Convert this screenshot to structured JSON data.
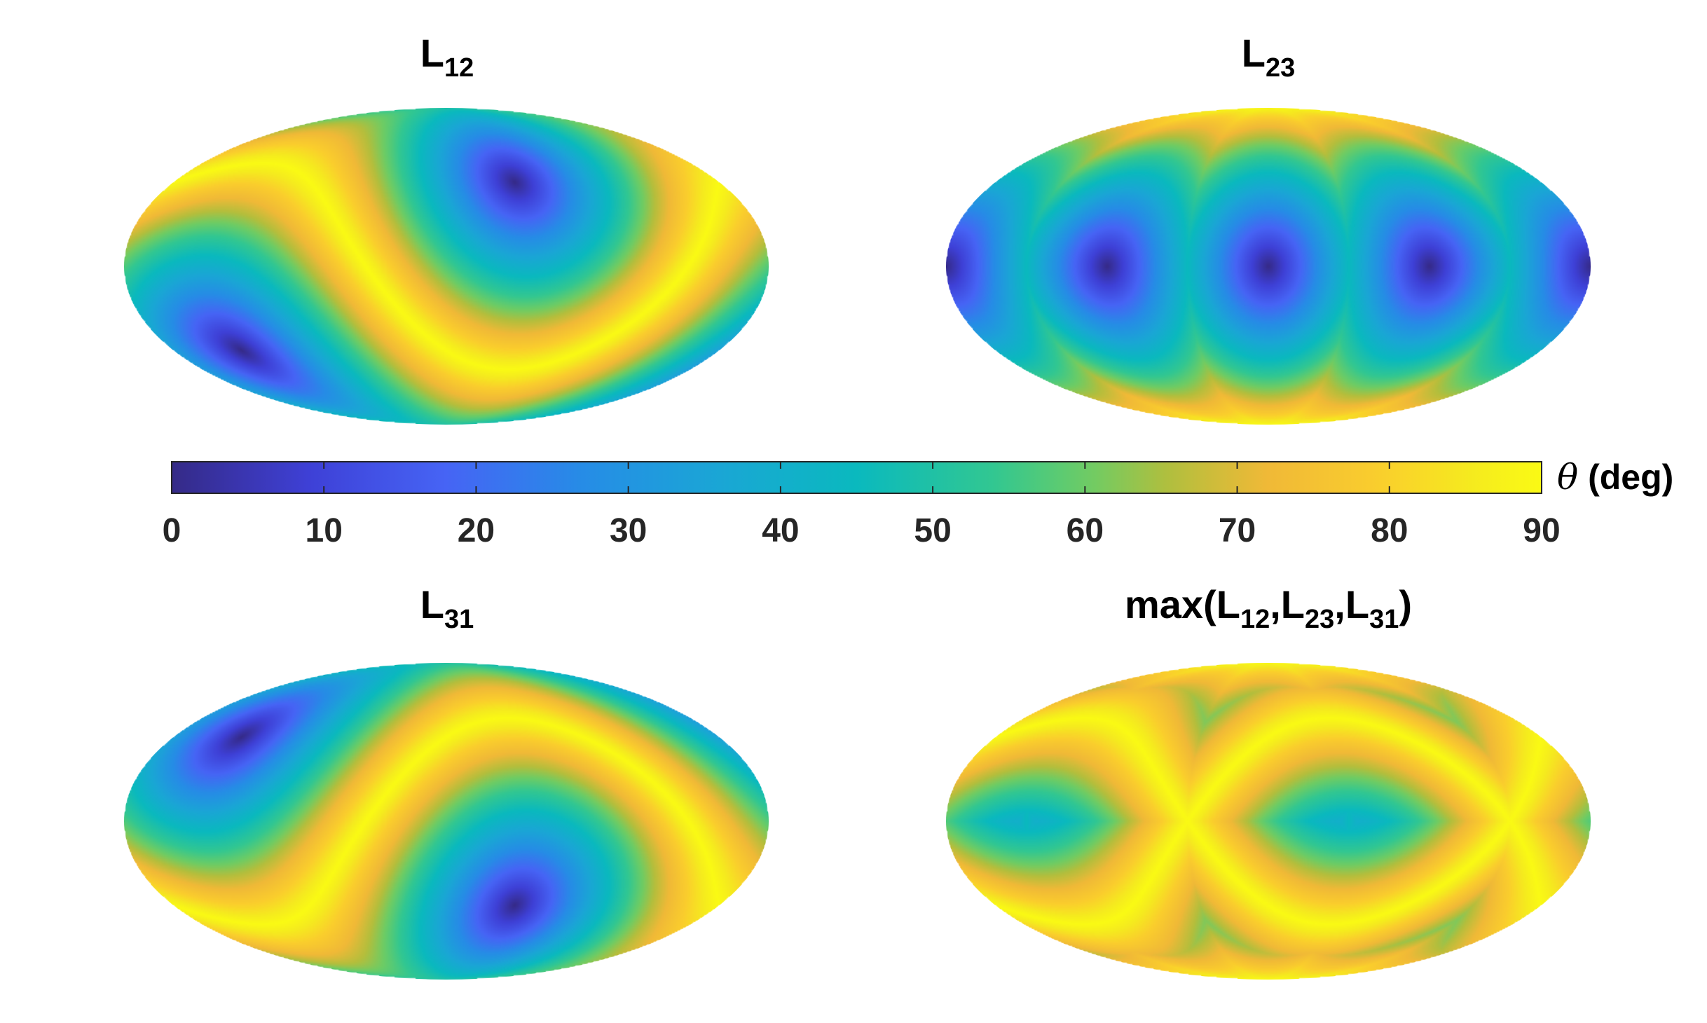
{
  "chart_data": [
    {
      "type": "heatmap",
      "projection": "mollweide",
      "title": {
        "base": "L",
        "sub": "12"
      },
      "centers": [
        {
          "lon": 45,
          "lat": 40
        }
      ],
      "value_range": [
        0,
        90
      ]
    },
    {
      "type": "heatmap",
      "projection": "mollweide",
      "title": {
        "base": "L",
        "sub": "23"
      },
      "centers": [
        {
          "lon": 0,
          "lat": 0
        },
        {
          "lon": 90,
          "lat": 0
        }
      ],
      "value_range": [
        0,
        90
      ]
    },
    {
      "type": "heatmap",
      "projection": "mollweide",
      "title": {
        "base": "L",
        "sub": "31"
      },
      "centers": [
        {
          "lon": 45,
          "lat": -40
        }
      ],
      "value_range": [
        0,
        90
      ]
    },
    {
      "type": "heatmap",
      "projection": "mollweide",
      "title": {
        "parts": [
          "max(",
          "L",
          "12",
          ",",
          "L",
          "23",
          ",",
          "L",
          "31",
          ")"
        ]
      },
      "composite": "max",
      "value_range": [
        0,
        90
      ]
    }
  ],
  "colorbar": {
    "label_symbol": "θ",
    "label_unit": "(deg)",
    "ticks": [
      "0",
      "10",
      "20",
      "30",
      "40",
      "50",
      "60",
      "70",
      "80",
      "90"
    ],
    "range": [
      0,
      90
    ],
    "colormap": "parula"
  }
}
